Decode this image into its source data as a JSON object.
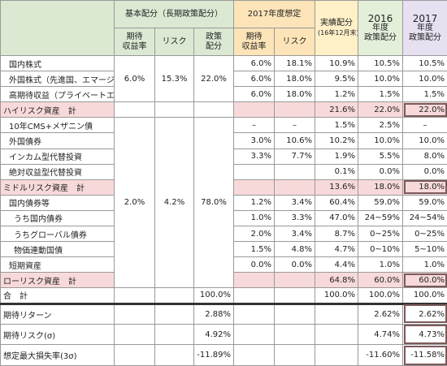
{
  "header": {
    "basic": "基本配分（長期政策配分）",
    "forecast": "2017年度想定",
    "actual": "実績配分",
    "actual_note": "(16年12月末)",
    "fy2016": [
      "2016",
      "年度",
      "政策配分"
    ],
    "fy2017": [
      "2017",
      "年度",
      "政策配分"
    ],
    "sub": [
      [
        "期待",
        "収益率"
      ],
      [
        "リスク"
      ],
      [
        "政策",
        "配分"
      ],
      [
        "期待",
        "収益率"
      ],
      [
        "リスク"
      ]
    ]
  },
  "basic_high": [
    "6.0%",
    "15.3%",
    "22.0%"
  ],
  "basic_mid_low": [
    "2.0%",
    "4.2%",
    "78.0%"
  ],
  "rows": [
    {
      "label": "国内株式",
      "values": [
        "6.0%",
        "18.1%",
        "10.9%",
        "10.5%",
        "10.5%"
      ]
    },
    {
      "label": "外国株式（先進国、エマージング）",
      "values": [
        "6.0%",
        "18.0%",
        "9.5%",
        "10.0%",
        "10.0%"
      ]
    },
    {
      "label": "高期待収益（プライベートエクイティ）",
      "values": [
        "6.0%",
        "18.0%",
        "1.2%",
        "1.5%",
        "1.5%"
      ]
    },
    {
      "label": "ハイリスク資産　計",
      "values": [
        "21.6%",
        "22.0%",
        "22.0%"
      ]
    },
    {
      "label": "10年CMS+メザニン債",
      "values": [
        "–",
        "–",
        "1.5%",
        "2.5%",
        "–"
      ]
    },
    {
      "label": "外国債券",
      "values": [
        "3.0%",
        "10.6%",
        "10.2%",
        "10.0%",
        "10.0%"
      ]
    },
    {
      "label": "インカム型代替投資",
      "values": [
        "3.3%",
        "7.7%",
        "1.9%",
        "5.5%",
        "8.0%"
      ]
    },
    {
      "label": "絶対収益型代替投資",
      "values": [
        "0.1%",
        "0.0%",
        "0.0%"
      ]
    },
    {
      "label": "ミドルリスク資産　計",
      "values": [
        "13.6%",
        "18.0%",
        "18.0%"
      ]
    },
    {
      "label": "国内債券等",
      "values": [
        "1.2%",
        "3.4%",
        "60.4%",
        "59.0%",
        "59.0%"
      ]
    },
    {
      "label": "うち国内債券",
      "values": [
        "1.0%",
        "3.3%",
        "47.0%",
        "24~59%",
        "24~54%"
      ]
    },
    {
      "label": "うちグローバル債券",
      "values": [
        "2.0%",
        "3.4%",
        "8.7%",
        "0~25%",
        "0~25%"
      ]
    },
    {
      "label": "物価連動国債",
      "values": [
        "1.5%",
        "4.8%",
        "4.7%",
        "0~10%",
        "5~10%"
      ]
    },
    {
      "label": "短期資産",
      "values": [
        "0.0%",
        "0.0%",
        "4.4%",
        "1.0%",
        "1.0%"
      ]
    },
    {
      "label": "ローリスク資産　計",
      "values": [
        "64.8%",
        "60.0%",
        "60.0%"
      ]
    }
  ],
  "total": {
    "label": "合　計",
    "policy": "100.0%",
    "values": [
      "100.0%",
      "100.0%",
      "100.0%"
    ]
  },
  "summary": [
    {
      "label": "期待リターン",
      "policy": "2.88%",
      "values": [
        "2.62%",
        "2.62%"
      ]
    },
    {
      "label": "期待リスク(σ)",
      "policy": "4.92%",
      "values": [
        "4.74%",
        "4.73%"
      ]
    },
    {
      "label": "想定最大損失率(3σ)",
      "policy": "-11.89%",
      "values": [
        "-11.60%",
        "-11.58%"
      ]
    }
  ]
}
